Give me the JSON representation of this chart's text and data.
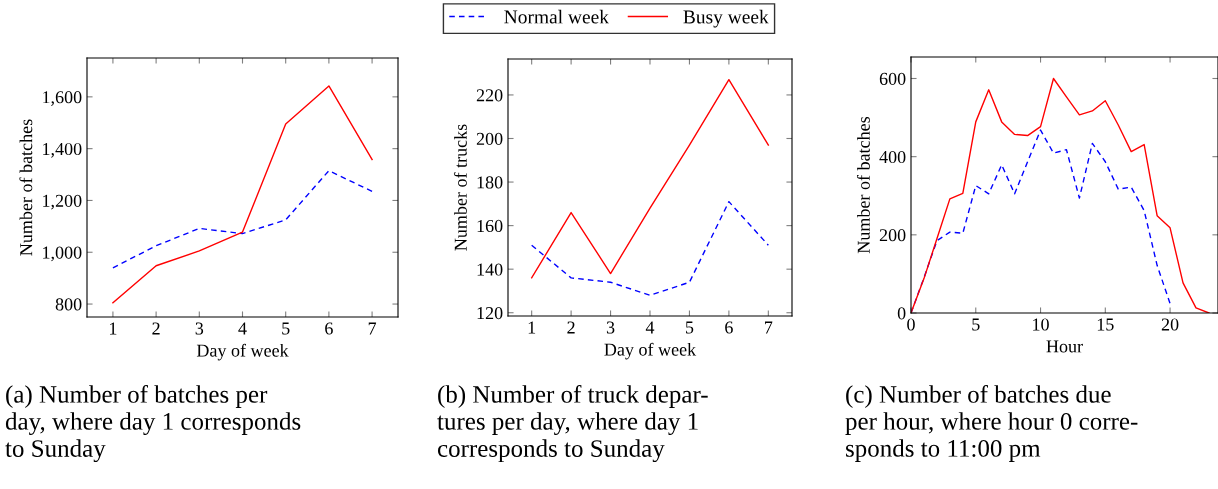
{
  "chart_data": [
    {
      "type": "line",
      "xlabel": "Day of week",
      "ylabel": "Number of batches",
      "x": [
        1,
        2,
        3,
        4,
        5,
        6,
        7
      ],
      "xlim": [
        0.4,
        7.6
      ],
      "xticks": [
        1,
        2,
        3,
        4,
        5,
        6,
        7
      ],
      "ylim": [
        750,
        1750
      ],
      "yticks": [
        800,
        {
          "value": 1000,
          "label": "1,000"
        },
        {
          "value": 1200,
          "label": "1,200"
        },
        {
          "value": 1400,
          "label": "1,400"
        },
        {
          "value": 1600,
          "label": "1,600"
        }
      ],
      "legend": "top",
      "grid": false,
      "marker": "none",
      "series": [
        {
          "name": "Normal week",
          "color": "#0000ff",
          "line_style": "dashed",
          "values": [
            940,
            1025,
            1092,
            1072,
            1125,
            1315,
            1235
          ]
        },
        {
          "name": "Busy week",
          "color": "#ff0000",
          "line_style": "solid",
          "values": [
            805,
            948,
            1005,
            1078,
            1495,
            1642,
            1358
          ]
        }
      ],
      "annotations": [
        "(a) Number of batches per\nday, where day 1 corresponds\nto Sunday"
      ]
    },
    {
      "type": "line",
      "xlabel": "Day of week",
      "ylabel": "Number of trucks",
      "x": [
        1,
        2,
        3,
        4,
        5,
        6,
        7
      ],
      "xlim": [
        0.4,
        7.6
      ],
      "xticks": [
        1,
        2,
        3,
        4,
        5,
        6,
        7
      ],
      "ylim": [
        118.5,
        236.5
      ],
      "yticks": [
        120,
        140,
        160,
        180,
        200,
        220
      ],
      "grid": false,
      "marker": "none",
      "series": [
        {
          "color": "#0000ff",
          "line_style": "dashed",
          "values": [
            151,
            136,
            134,
            128,
            134,
            171,
            151
          ]
        },
        {
          "color": "#ff0000",
          "line_style": "solid",
          "values": [
            136,
            166,
            138,
            168,
            197,
            227,
            197
          ]
        }
      ],
      "annotations": [
        "(b) Number of truck depar-\ntures per day, where day 1\ncorresponds to Sunday"
      ]
    },
    {
      "type": "line",
      "xlabel": "Hour",
      "ylabel": "Number of batches",
      "xlim": [
        0,
        23.7
      ],
      "xticks": [
        0,
        5,
        10,
        15,
        20
      ],
      "ylim": [
        0,
        655
      ],
      "yticks": [
        0,
        200,
        400,
        600
      ],
      "grid": false,
      "marker": "none",
      "series": [
        {
          "color": "#0000ff",
          "line_style": "dashed",
          "x": [
            0,
            1,
            2,
            3,
            4,
            5,
            6,
            7,
            8,
            9,
            10,
            11,
            12,
            13,
            14,
            15,
            16,
            17,
            18,
            19,
            20
          ],
          "values": [
            0,
            90,
            185,
            207,
            204,
            326,
            305,
            379,
            305,
            387,
            468,
            409,
            418,
            294,
            434,
            387,
            317,
            322,
            262,
            122,
            24
          ]
        },
        {
          "color": "#ff0000",
          "line_style": "solid",
          "x": [
            0,
            1,
            2,
            3,
            4,
            5,
            6,
            7,
            8,
            9,
            10,
            11,
            12,
            13,
            14,
            15,
            16,
            17,
            18,
            19,
            20,
            21,
            22,
            23
          ],
          "values": [
            0,
            88,
            190,
            292,
            306,
            489,
            571,
            489,
            457,
            454,
            477,
            600,
            553,
            507,
            517,
            543,
            481,
            413,
            431,
            249,
            218,
            77,
            13,
            0
          ]
        }
      ],
      "annotations": [
        "(c) Number of batches due\nper hour, where hour 0 corre-\nsponds to 11:00 pm"
      ]
    }
  ]
}
